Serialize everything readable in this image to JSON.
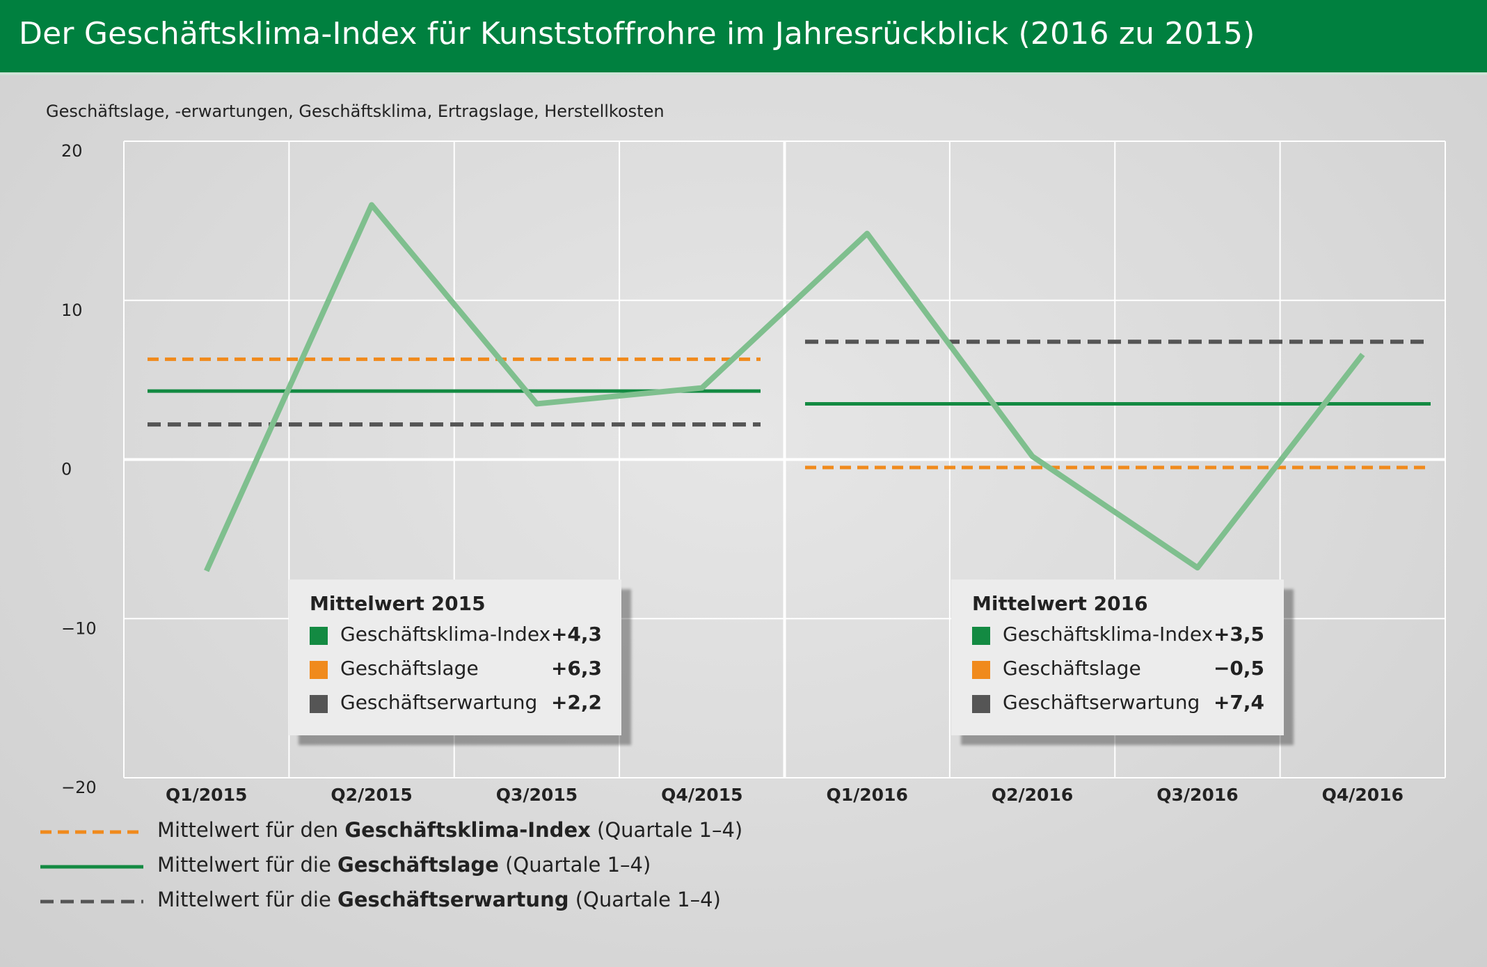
{
  "title": "Der Geschäftsklima-Index für Kunststoffrohre im Jahresrückblick (2016 zu 2015)",
  "colors": {
    "header_green": "#00803f",
    "index_line": "#7fbf8e",
    "lage_orange": "#f08a1c",
    "index_mean_green": "#138a42",
    "erwartung_gray": "#555555"
  },
  "chart_data": {
    "type": "line",
    "ylabel": "Geschäftslage, -erwartungen, Geschäftsklima, Ertragslage, Herstellkosten",
    "ylim": [
      -20,
      20
    ],
    "yticks": [
      20,
      10,
      0,
      -10,
      -20
    ],
    "ytick_labels": [
      "20",
      "10",
      "0",
      "−10",
      "−20"
    ],
    "categories": [
      "Q1/2015",
      "Q2/2015",
      "Q3/2015",
      "Q4/2015",
      "Q1/2016",
      "Q2/2016",
      "Q3/2016",
      "Q4/2016"
    ],
    "series": [
      {
        "values": [
          -7.0,
          16.0,
          3.5,
          4.5,
          14.2,
          0.2,
          -6.8,
          6.6
        ]
      }
    ],
    "means": {
      "2015": {
        "geschaeftsklima_index": 4.3,
        "geschaeftslage": 6.3,
        "geschaeftserwartung": 2.2
      },
      "2016": {
        "geschaeftsklima_index": 3.5,
        "geschaeftslage": -0.5,
        "geschaeftserwartung": 7.4
      }
    },
    "grid": true
  },
  "boxes": [
    {
      "title": "Mittelwert 2015",
      "rows": [
        {
          "label": "Geschäftsklima-Index",
          "value": "+4,3",
          "swatch": "#138a42"
        },
        {
          "label": "Geschäftslage",
          "value": "+6,3",
          "swatch": "#f08a1c"
        },
        {
          "label": "Geschäftserwartung",
          "value": "+2,2",
          "swatch": "#555555"
        }
      ]
    },
    {
      "title": "Mittelwert 2016",
      "rows": [
        {
          "label": "Geschäftsklima-Index",
          "value": "+3,5",
          "swatch": "#138a42"
        },
        {
          "label": "Geschäftslage",
          "value": "−0,5",
          "swatch": "#f08a1c"
        },
        {
          "label": "Geschäftserwartung",
          "value": "+7,4",
          "swatch": "#555555"
        }
      ]
    }
  ],
  "legend": [
    {
      "prefix": "Mittelwert für den ",
      "bold": "Geschäftsklima-Index",
      "suffix": " (Quartale 1–4)",
      "style": "dashed",
      "color": "#f08a1c"
    },
    {
      "prefix": "Mittelwert für die ",
      "bold": "Geschäftslage",
      "suffix": " (Quartale 1–4)",
      "style": "solid",
      "color": "#138a42"
    },
    {
      "prefix": "Mittelwert für die ",
      "bold": "Geschäftserwartung",
      "suffix": " (Quartale 1–4)",
      "style": "dashed",
      "color": "#555555"
    }
  ]
}
